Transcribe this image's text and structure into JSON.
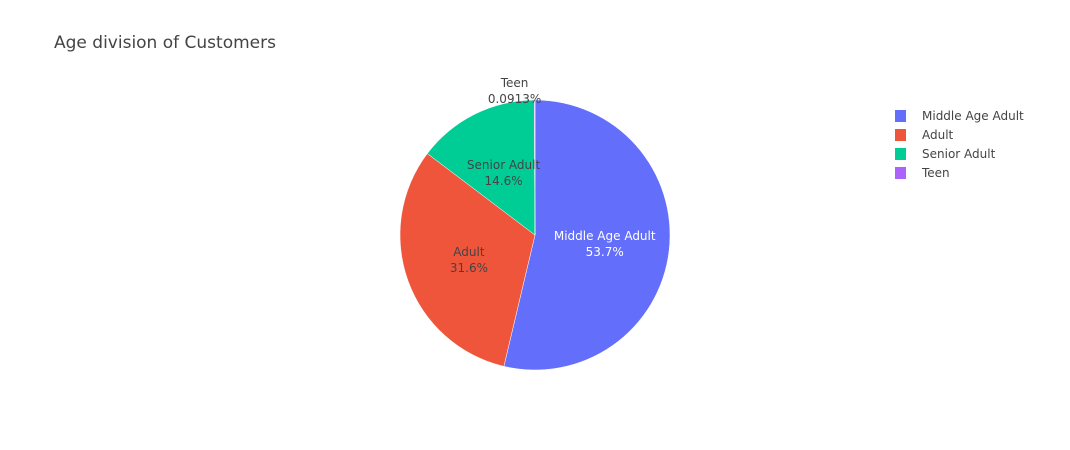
{
  "chart_data": {
    "type": "pie",
    "title": "Age division of Customers",
    "slices": [
      {
        "label": "Middle Age Adult",
        "value": 53.7,
        "value_label": "53.7%",
        "color": "#636efa",
        "text_color": "#ffffff"
      },
      {
        "label": "Adult",
        "value": 31.6,
        "value_label": "31.6%",
        "color": "#ef553b",
        "text_color": "#444444"
      },
      {
        "label": "Senior Adult",
        "value": 14.6,
        "value_label": "14.6%",
        "color": "#00cc96",
        "text_color": "#444444"
      },
      {
        "label": "Teen",
        "value": 0.0913,
        "value_label": "0.0913%",
        "color": "#ab63fa",
        "text_color": "#444444"
      }
    ],
    "legend": {
      "placement": "top-right"
    }
  }
}
